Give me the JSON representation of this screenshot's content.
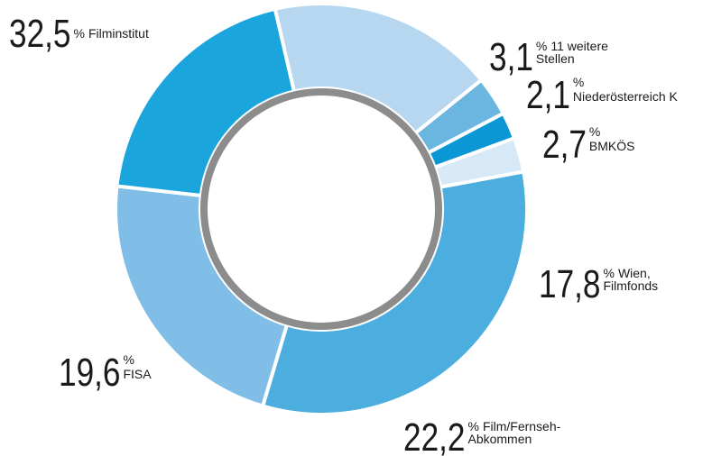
{
  "chart_data": {
    "type": "donut",
    "unit": "%",
    "categories": [
      [
        "Wien,",
        "Filmfonds"
      ],
      [
        "11 weitere",
        "Stellen"
      ],
      [
        "Niederösterreich K"
      ],
      [
        "BMKÖS"
      ],
      [
        "Filminstitut"
      ],
      [
        "Film/Fernseh-",
        "Abkommen"
      ],
      [
        "FISA"
      ]
    ],
    "values": [
      17.8,
      3.1,
      2.1,
      2.7,
      32.5,
      22.2,
      19.6
    ],
    "value_labels": [
      "17,8",
      "3,1",
      "2,1",
      "2,7",
      "32,5",
      "22,2",
      "19,6"
    ],
    "colors": [
      "#b6d7ef",
      "#6bb5e1",
      "#0b97d5",
      "#d7e9f7",
      "#4caede",
      "#81bee7",
      "#1ba5dd"
    ]
  }
}
